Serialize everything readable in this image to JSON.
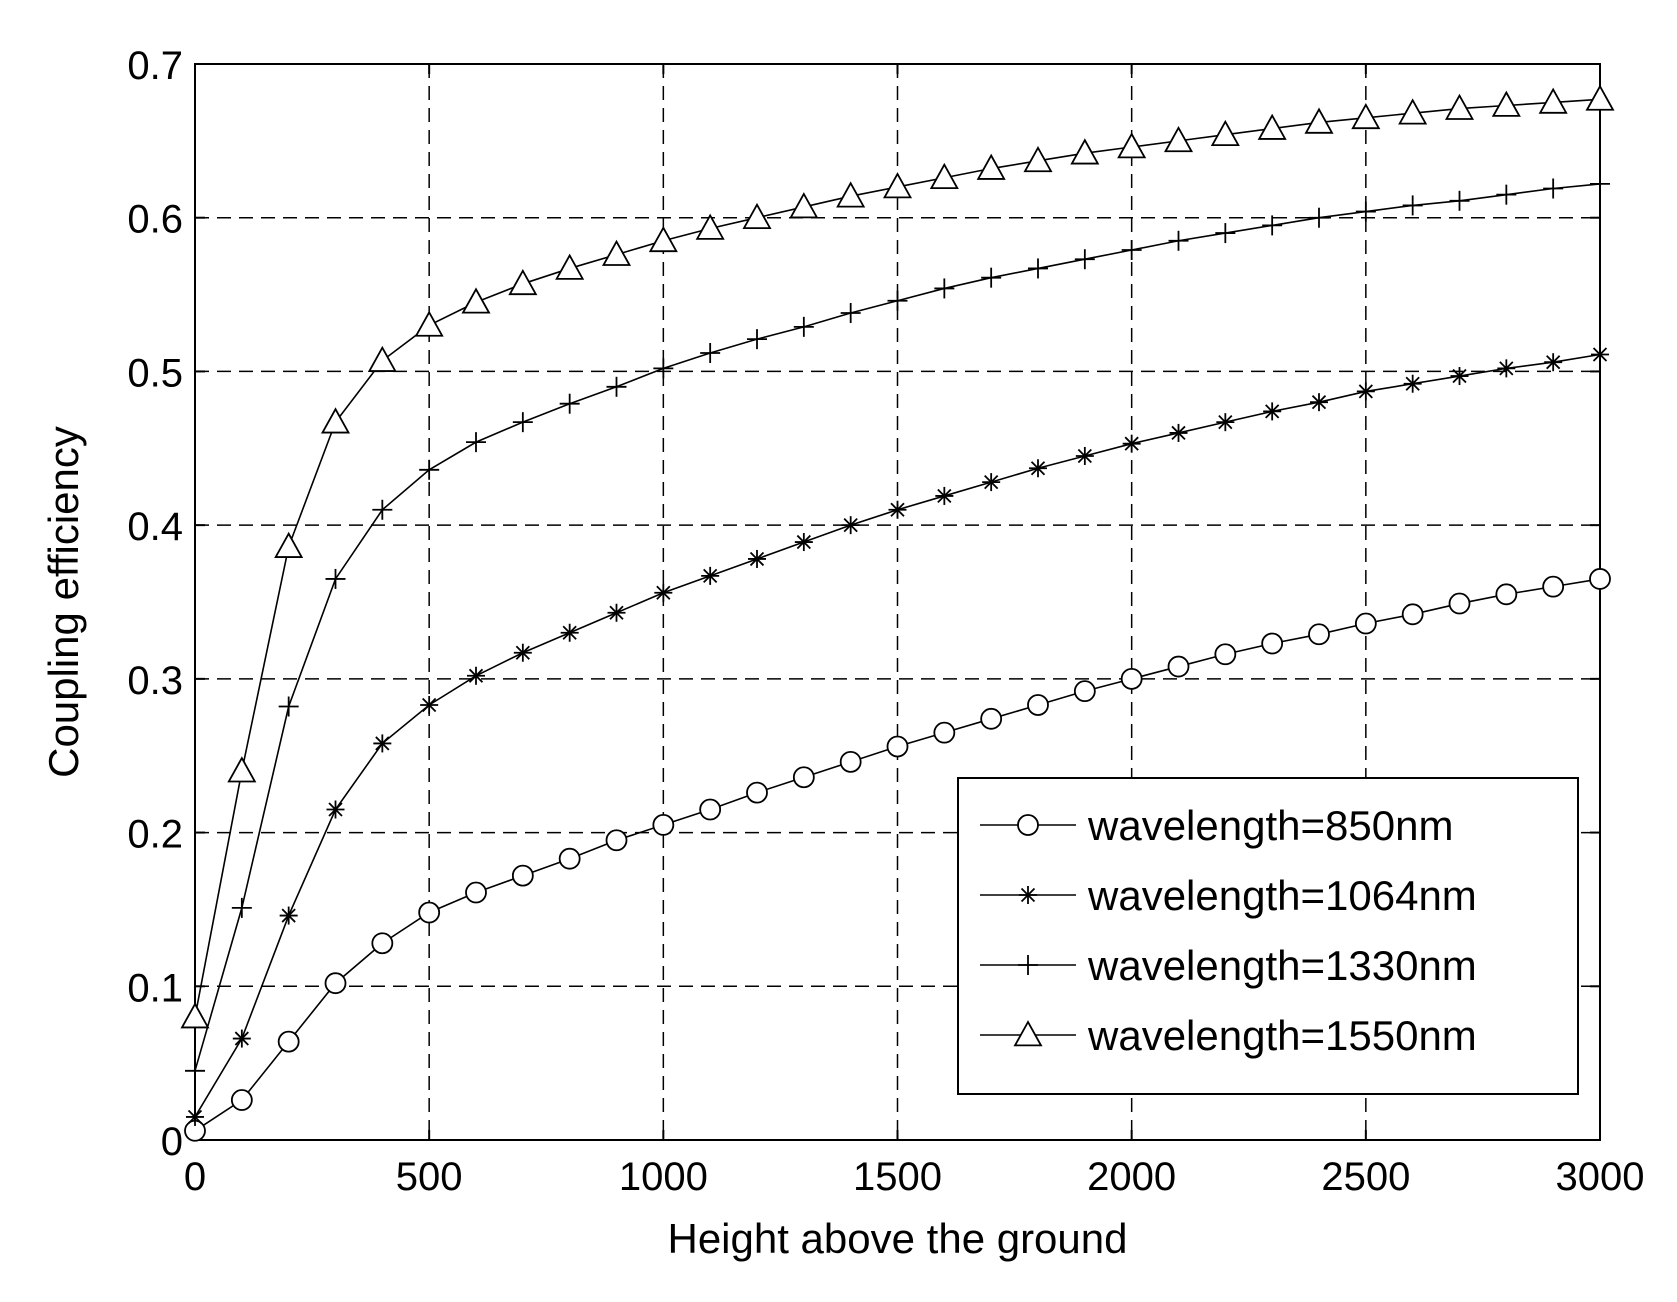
{
  "chart_data": {
    "type": "line",
    "xlabel": "Height above the ground",
    "ylabel": "Coupling efficiency",
    "xlim": [
      0,
      3000
    ],
    "ylim": [
      0,
      0.7
    ],
    "xticks": [
      "0",
      "500",
      "1000",
      "1500",
      "2000",
      "2500",
      "3000"
    ],
    "yticks": [
      "0",
      "0.1",
      "0.2",
      "0.3",
      "0.4",
      "0.5",
      "0.6",
      "0.7"
    ],
    "grid": true,
    "legend_position": "bottom-right",
    "x": [
      0,
      100,
      200,
      300,
      400,
      500,
      600,
      700,
      800,
      900,
      1000,
      1100,
      1200,
      1300,
      1400,
      1500,
      1600,
      1700,
      1800,
      1900,
      2000,
      2100,
      2200,
      2300,
      2400,
      2500,
      2600,
      2700,
      2800,
      2900,
      3000
    ],
    "series": [
      {
        "name": "wavelength=850nm",
        "marker": "circle",
        "values": [
          0.006,
          0.026,
          0.064,
          0.102,
          0.128,
          0.148,
          0.161,
          0.172,
          0.183,
          0.195,
          0.205,
          0.215,
          0.226,
          0.236,
          0.246,
          0.256,
          0.265,
          0.274,
          0.283,
          0.292,
          0.3,
          0.308,
          0.316,
          0.323,
          0.329,
          0.336,
          0.342,
          0.349,
          0.355,
          0.36,
          0.365
        ]
      },
      {
        "name": "wavelength=1064nm",
        "marker": "star",
        "values": [
          0.015,
          0.066,
          0.146,
          0.215,
          0.258,
          0.283,
          0.302,
          0.317,
          0.33,
          0.343,
          0.356,
          0.367,
          0.378,
          0.389,
          0.4,
          0.41,
          0.419,
          0.428,
          0.437,
          0.445,
          0.453,
          0.46,
          0.467,
          0.474,
          0.48,
          0.487,
          0.492,
          0.497,
          0.502,
          0.506,
          0.511
        ]
      },
      {
        "name": "wavelength=1330nm",
        "marker": "plus",
        "values": [
          0.045,
          0.151,
          0.282,
          0.365,
          0.41,
          0.436,
          0.454,
          0.467,
          0.479,
          0.49,
          0.502,
          0.512,
          0.521,
          0.529,
          0.538,
          0.546,
          0.554,
          0.561,
          0.567,
          0.573,
          0.579,
          0.585,
          0.59,
          0.595,
          0.6,
          0.604,
          0.608,
          0.611,
          0.615,
          0.619,
          0.622
        ]
      },
      {
        "name": "wavelength=1550nm",
        "marker": "triangle",
        "values": [
          0.08,
          0.24,
          0.386,
          0.467,
          0.507,
          0.53,
          0.545,
          0.557,
          0.567,
          0.576,
          0.585,
          0.593,
          0.6,
          0.607,
          0.614,
          0.62,
          0.626,
          0.632,
          0.637,
          0.642,
          0.646,
          0.65,
          0.654,
          0.658,
          0.662,
          0.665,
          0.668,
          0.671,
          0.673,
          0.675,
          0.677
        ]
      }
    ]
  }
}
